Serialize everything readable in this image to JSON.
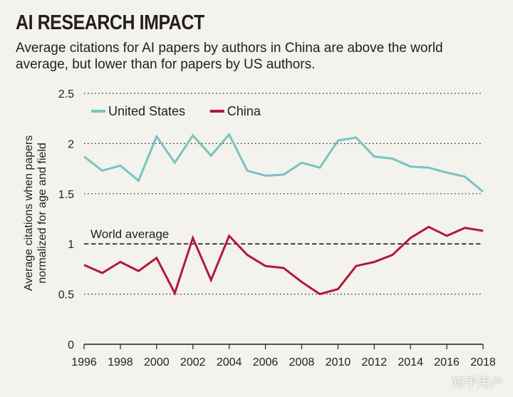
{
  "header": {
    "title": "AI RESEARCH IMPACT",
    "subtitle": "Average citations for AI papers by authors in China are above the world average, but lower than for papers by US authors."
  },
  "watermark": "知乎用户",
  "colors": {
    "background": "#f3f2ec",
    "us": "#79c3c2",
    "china": "#b2183b",
    "grid": "#231f20"
  },
  "chart_data": {
    "type": "line",
    "title": "AI RESEARCH IMPACT",
    "xlabel": "",
    "ylabel": "Average citations when papers normalized for age and field",
    "ylabel_lines": [
      "Average citations when papers",
      "normalized for age and field"
    ],
    "xlim": [
      1996,
      2018
    ],
    "ylim": [
      0,
      2.5
    ],
    "x_ticks": [
      "1996",
      "1998",
      "2000",
      "2002",
      "2004",
      "2006",
      "2008",
      "2010",
      "2012",
      "2014",
      "2016",
      "2018"
    ],
    "x_tick_values": [
      1996,
      1998,
      2000,
      2002,
      2004,
      2006,
      2008,
      2010,
      2012,
      2014,
      2016,
      2018
    ],
    "y_ticks": [
      "0",
      "0.5",
      "1",
      "1.5",
      "2",
      "2.5"
    ],
    "y_tick_values": [
      0,
      0.5,
      1,
      1.5,
      2,
      2.5
    ],
    "grid": "dotted horizontal",
    "legend_position": "top-left",
    "x": [
      1996,
      1997,
      1998,
      1999,
      2000,
      2001,
      2002,
      2003,
      2004,
      2005,
      2006,
      2007,
      2008,
      2009,
      2010,
      2011,
      2012,
      2013,
      2014,
      2015,
      2016,
      2017,
      2018
    ],
    "series": [
      {
        "name": "United States",
        "color": "#79c3c2",
        "values": [
          1.87,
          1.73,
          1.78,
          1.63,
          2.07,
          1.81,
          2.08,
          1.88,
          2.09,
          1.73,
          1.68,
          1.69,
          1.81,
          1.76,
          2.03,
          2.06,
          1.87,
          1.85,
          1.77,
          1.76,
          1.71,
          1.67,
          1.52
        ]
      },
      {
        "name": "China",
        "color": "#b2183b",
        "values": [
          0.79,
          0.71,
          0.82,
          0.73,
          0.86,
          0.51,
          1.06,
          0.64,
          1.08,
          0.89,
          0.78,
          0.76,
          0.62,
          0.5,
          0.55,
          0.78,
          0.82,
          0.89,
          1.06,
          1.17,
          1.08,
          1.16,
          1.13
        ]
      }
    ],
    "reference_line": {
      "label": "World average",
      "value": 1
    }
  }
}
